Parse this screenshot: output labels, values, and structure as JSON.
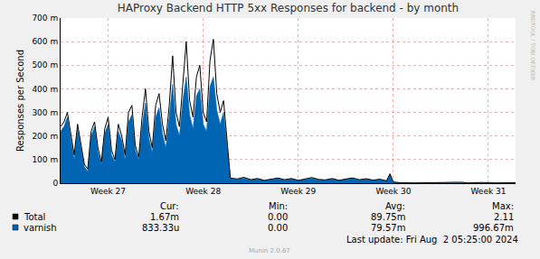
{
  "chart_data": {
    "type": "line",
    "title": "HAProxy Backend HTTP 5xx Responses for backend - by month",
    "y_label": "Responses per Second",
    "x": [
      0,
      0.25,
      0.5,
      0.75,
      1,
      1.25,
      1.5,
      1.75,
      2,
      2.25,
      2.5,
      2.75,
      3,
      3.25,
      3.5,
      3.75,
      4,
      4.25,
      4.5,
      4.75,
      5,
      5.25,
      5.5,
      5.75,
      6,
      6.25,
      6.5,
      6.75,
      7,
      7.25,
      7.5,
      7.75,
      8,
      8.25,
      8.5,
      8.75,
      9,
      9.25,
      9.5,
      9.75,
      10,
      10.25,
      10.5,
      10.75,
      11,
      11.25,
      11.5,
      11.75,
      12,
      12.5,
      13,
      13.5,
      14,
      14.5,
      15,
      15.5,
      16,
      16.5,
      17,
      17.5,
      18,
      18.5,
      19,
      19.5,
      20,
      20.5,
      21,
      21.5,
      22,
      22.5,
      23,
      23.5,
      24,
      24.25,
      24.5,
      25,
      26,
      27,
      28,
      29,
      29.5,
      30,
      31,
      32,
      33,
      33.5
    ],
    "series": [
      {
        "name": "varnish",
        "type": "area",
        "color": "#0066b3",
        "values": [
          0.22,
          0.24,
          0.28,
          0.18,
          0.1,
          0.23,
          0.15,
          0.07,
          0.05,
          0.2,
          0.24,
          0.13,
          0.08,
          0.21,
          0.25,
          0.12,
          0.09,
          0.22,
          0.18,
          0.1,
          0.26,
          0.29,
          0.14,
          0.1,
          0.24,
          0.34,
          0.19,
          0.13,
          0.28,
          0.32,
          0.21,
          0.15,
          0.28,
          0.42,
          0.25,
          0.2,
          0.35,
          0.45,
          0.29,
          0.23,
          0.37,
          0.4,
          0.25,
          0.22,
          0.41,
          0.45,
          0.31,
          0.25,
          0.3,
          0.02,
          0.016,
          0.022,
          0.013,
          0.018,
          0.011,
          0.016,
          0.02,
          0.013,
          0.018,
          0.011,
          0.016,
          0.021,
          0.014,
          0.012,
          0.018,
          0.011,
          0.016,
          0.02,
          0.013,
          0.017,
          0.012,
          0.015,
          0.009,
          0.036,
          0.004,
          0.001,
          0.001,
          0.001,
          0.001,
          0.001,
          0.003,
          0.001,
          0.002,
          0.001,
          0.001,
          0.001
        ]
      },
      {
        "name": "Total",
        "type": "line",
        "color": "#000000",
        "values": [
          0.24,
          0.26,
          0.3,
          0.2,
          0.12,
          0.25,
          0.17,
          0.08,
          0.06,
          0.22,
          0.26,
          0.15,
          0.09,
          0.23,
          0.28,
          0.14,
          0.1,
          0.25,
          0.2,
          0.12,
          0.3,
          0.33,
          0.16,
          0.11,
          0.28,
          0.4,
          0.22,
          0.15,
          0.33,
          0.38,
          0.25,
          0.18,
          0.33,
          0.54,
          0.3,
          0.24,
          0.42,
          0.6,
          0.35,
          0.28,
          0.45,
          0.5,
          0.3,
          0.26,
          0.52,
          0.61,
          0.38,
          0.3,
          0.35,
          0.022,
          0.018,
          0.025,
          0.015,
          0.02,
          0.012,
          0.018,
          0.022,
          0.015,
          0.02,
          0.012,
          0.018,
          0.024,
          0.016,
          0.014,
          0.02,
          0.012,
          0.018,
          0.022,
          0.015,
          0.019,
          0.013,
          0.017,
          0.01,
          0.04,
          0.005,
          0.002,
          0.001,
          0.002,
          0.001,
          0.002,
          0.004,
          0.001,
          0.003,
          0.001,
          0.002,
          0.002
        ]
      }
    ],
    "xlim": [
      0,
      33.5
    ],
    "xticks": [
      {
        "value": 3.5,
        "label": "Week 27"
      },
      {
        "value": 10.5,
        "label": "Week 28"
      },
      {
        "value": 17.5,
        "label": "Week 29"
      },
      {
        "value": 24.5,
        "label": "Week 30"
      },
      {
        "value": 31.5,
        "label": "Week 31"
      }
    ],
    "ylim": [
      0,
      0.7
    ],
    "yticks": [
      0,
      {
        "value": 0.1,
        "label": "100 m"
      },
      {
        "value": 0.2,
        "label": "200 m"
      },
      {
        "value": 0.3,
        "label": "300 m"
      },
      {
        "value": 0.4,
        "label": "400 m"
      },
      {
        "value": 0.5,
        "label": "500 m"
      },
      {
        "value": 0.6,
        "label": "600 m"
      },
      {
        "value": 0.7,
        "label": "700 m"
      }
    ],
    "grid": true,
    "legend_table": {
      "columns": [
        "Cur:",
        "Min:",
        "Avg:",
        "Max:"
      ],
      "rows": [
        {
          "name": "Total",
          "color": "#000000",
          "cells": [
            "1.67m",
            "0.00",
            "89.75m",
            "2.11"
          ]
        },
        {
          "name": "varnish",
          "color": "#0066b3",
          "cells": [
            "833.33u",
            "0.00",
            "79.57m",
            "996.67m"
          ]
        }
      ]
    },
    "footer": "Last update: Fri Aug  2 05:25:00 2024",
    "credit": "Munin 2.0.67",
    "side_text": "RRDTOOL / TOBI OETIKER"
  }
}
